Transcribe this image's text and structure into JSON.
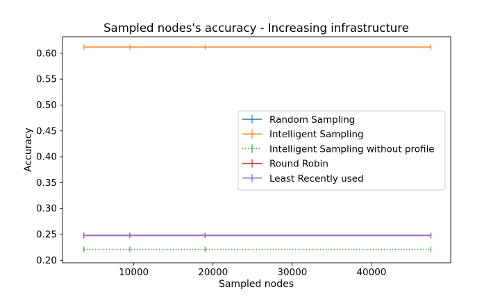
{
  "chart_data": {
    "type": "line",
    "title": "Sampled nodes's accuracy - Increasing infrastructure",
    "xlabel": "Sampled nodes",
    "ylabel": "Accuracy",
    "xlim": [
      1000,
      50000
    ],
    "ylim": [
      0.195,
      0.632
    ],
    "xticks": [
      10000,
      20000,
      30000,
      40000
    ],
    "xtick_labels": [
      "10000",
      "20000",
      "30000",
      "40000"
    ],
    "yticks": [
      0.2,
      0.25,
      0.3,
      0.35,
      0.4,
      0.45,
      0.5,
      0.55,
      0.6
    ],
    "ytick_labels": [
      "0.20",
      "0.25",
      "0.30",
      "0.35",
      "0.40",
      "0.45",
      "0.50",
      "0.55",
      "0.60"
    ],
    "x": [
      3700,
      9500,
      19000,
      47500
    ],
    "grid": false,
    "legend_position": "center-right",
    "series": [
      {
        "name": "Random Sampling",
        "values": [
          0.248,
          0.248,
          0.248,
          0.248
        ],
        "color": "#1f77b4",
        "style": "solid"
      },
      {
        "name": "Intelligent Sampling",
        "values": [
          0.612,
          0.612,
          0.612,
          0.612
        ],
        "color": "#ff7f0e",
        "style": "solid"
      },
      {
        "name": "Intelligent Sampling without profile",
        "values": [
          0.221,
          0.221,
          0.221,
          0.221
        ],
        "color": "#2ca02c",
        "style": "dotted"
      },
      {
        "name": "Round Robin",
        "values": [
          0.248,
          0.248,
          0.248,
          0.248
        ],
        "color": "#d62728",
        "style": "solid"
      },
      {
        "name": "Least Recently used",
        "values": [
          0.248,
          0.248,
          0.248,
          0.248
        ],
        "color": "#9467bd",
        "style": "solid"
      }
    ]
  }
}
